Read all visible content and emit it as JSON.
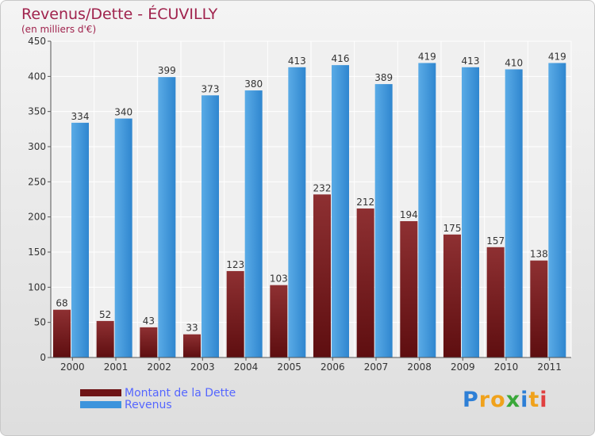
{
  "title": "Revenus/Dette - ÉCUVILLY",
  "subtitle": "(en milliers d'€)",
  "legend": {
    "debt_label": "Montant de la Dette",
    "revenue_label": "Revenus"
  },
  "logo": {
    "text": "Proxiti",
    "letters": [
      {
        "ch": "P",
        "color": "#2d7fd6"
      },
      {
        "ch": "r",
        "color": "#f0a21c"
      },
      {
        "ch": "o",
        "color": "#f0a21c"
      },
      {
        "ch": "x",
        "color": "#3aa83a"
      },
      {
        "ch": "i",
        "color": "#2d7fd6"
      },
      {
        "ch": "t",
        "color": "#f0a21c"
      },
      {
        "ch": "i",
        "color": "#e04040"
      }
    ]
  },
  "colors": {
    "debt": "#6e1416",
    "debt_light": "#8e3032",
    "revenue": "#2f86cf",
    "revenue_light": "#5aabe6",
    "title": "#a0234d",
    "legend_text": "#5566ff"
  },
  "chart_data": {
    "type": "bar",
    "title": "Revenus/Dette - ÉCUVILLY",
    "subtitle": "(en milliers d'€)",
    "xlabel": "",
    "ylabel": "",
    "ylim": [
      0,
      450
    ],
    "yticks": [
      0,
      50,
      100,
      150,
      200,
      250,
      300,
      350,
      400,
      450
    ],
    "grid": true,
    "legend_position": "bottom-left",
    "categories": [
      "2000",
      "2001",
      "2002",
      "2003",
      "2004",
      "2005",
      "2006",
      "2007",
      "2008",
      "2009",
      "2010",
      "2011"
    ],
    "series": [
      {
        "name": "Montant de la Dette",
        "values": [
          68,
          52,
          43,
          33,
          123,
          103,
          232,
          212,
          194,
          175,
          157,
          138
        ]
      },
      {
        "name": "Revenus",
        "values": [
          334,
          340,
          399,
          373,
          380,
          413,
          416,
          389,
          419,
          413,
          410,
          419
        ]
      }
    ]
  }
}
